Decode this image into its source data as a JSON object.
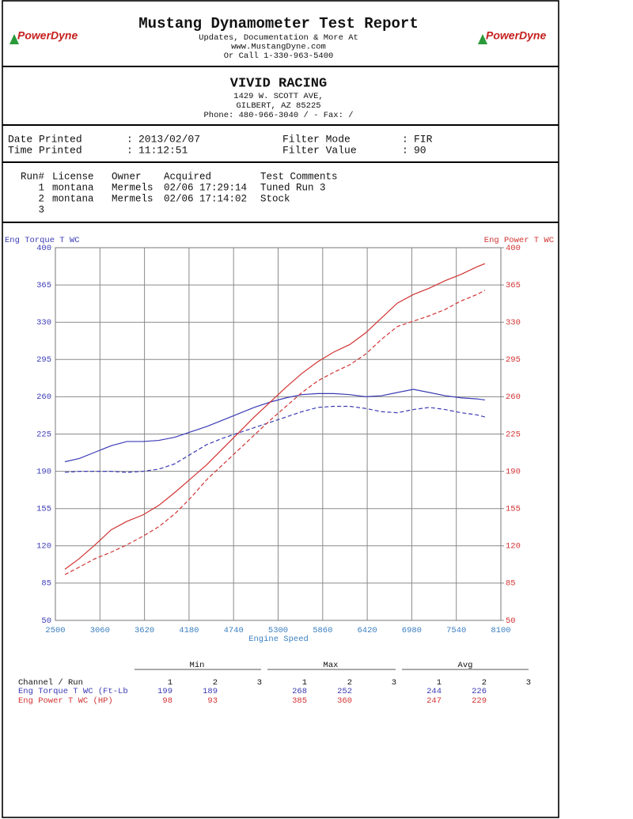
{
  "header": {
    "title": "Mustang Dynamometer Test Report",
    "lines": [
      "Updates, Documentation & More At",
      "www.MustangDyne.com",
      "Or Call 1-330-963-5400"
    ],
    "logo": "PowerDyne"
  },
  "company": {
    "name": "VIVID RACING",
    "lines": [
      "1429 W. SCOTT AVE,",
      "GILBERT, AZ  85225",
      "Phone: 480-966-3040 /  - Fax:  /"
    ]
  },
  "info": {
    "left": [
      {
        "label": "Date Printed",
        "value": "2013/02/07"
      },
      {
        "label": "Time Printed",
        "value": "11:12:51"
      }
    ],
    "right": [
      {
        "label": "Filter Mode",
        "value": "FIR"
      },
      {
        "label": "Filter Value",
        "value": "90"
      }
    ]
  },
  "runs": {
    "columns": [
      "Run#",
      "License",
      "Owner",
      "Acquired",
      "Test Comments"
    ],
    "rows": [
      [
        "1",
        "montana",
        "Mermels",
        "02/06 17:29:14",
        "Tuned Run 3"
      ],
      [
        "2",
        "montana",
        "Mermels",
        "02/06 17:14:02",
        "Stock"
      ],
      [
        "3"
      ]
    ]
  },
  "chart_data": {
    "type": "line",
    "y_label": "Eng Torque T WC",
    "y2_label": "Eng Power T WC",
    "x_label": "Engine Speed",
    "x": [
      2620,
      2800,
      3000,
      3200,
      3400,
      3600,
      3800,
      4000,
      4200,
      4400,
      4600,
      4800,
      5000,
      5200,
      5400,
      5600,
      5800,
      6000,
      6200,
      6400,
      6600,
      6800,
      7000,
      7200,
      7400,
      7600,
      7800,
      7900
    ],
    "series": [
      {
        "color": "#3b3bb5",
        "style": "solid",
        "axis": "y",
        "values": [
          199,
          202,
          208,
          214,
          218,
          218,
          219,
          222,
          227,
          232,
          238,
          244,
          250,
          255,
          259,
          262,
          263,
          263,
          262,
          260,
          261,
          264,
          267,
          264,
          261,
          259,
          258,
          257
        ]
      },
      {
        "color": "#3b3bb5",
        "style": "dashed",
        "axis": "y",
        "values": [
          189,
          190,
          190,
          190,
          189,
          190,
          192,
          197,
          206,
          215,
          221,
          226,
          231,
          236,
          241,
          246,
          250,
          251,
          251,
          249,
          246,
          245,
          248,
          250,
          248,
          245,
          243,
          241
        ]
      },
      {
        "color": "#d23232",
        "style": "solid",
        "axis": "y2",
        "values": [
          98,
          108,
          121,
          135,
          143,
          149,
          158,
          170,
          183,
          196,
          211,
          226,
          241,
          255,
          269,
          282,
          293,
          302,
          309,
          320,
          334,
          348,
          356,
          362,
          369,
          375,
          382,
          385
        ]
      },
      {
        "color": "#d23232",
        "style": "dashed",
        "axis": "y2",
        "values": [
          93,
          100,
          108,
          114,
          121,
          129,
          138,
          150,
          165,
          182,
          196,
          210,
          224,
          238,
          251,
          264,
          275,
          283,
          290,
          300,
          314,
          326,
          331,
          336,
          342,
          350,
          356,
          360
        ]
      }
    ],
    "xlim": [
      2500,
      8100
    ],
    "xticks": [
      2500,
      3060,
      3620,
      4180,
      4740,
      5300,
      5860,
      6420,
      6980,
      7540,
      8100
    ],
    "ylim": [
      50,
      400
    ],
    "yticks": [
      50,
      85,
      120,
      155,
      190,
      225,
      260,
      295,
      330,
      365,
      400
    ],
    "y2lim": [
      50,
      400
    ],
    "y2ticks": [
      50,
      85,
      120,
      155,
      190,
      225,
      260,
      295,
      330,
      365,
      400
    ],
    "y_color": "#3b3bb5",
    "y2_color": "#d23232",
    "x_color": "#3a7fc0",
    "grid": true
  },
  "summary": {
    "groups": [
      "Min",
      "Max",
      "Avg"
    ],
    "channel_label": "Channel / Run",
    "runs": [
      1,
      2,
      3
    ],
    "rows": [
      {
        "name": "Eng Torque T WC (Ft-Lb",
        "color": "#3b3bb5",
        "min": [
          199,
          189
        ],
        "max": [
          268,
          252
        ],
        "avg": [
          244,
          226
        ]
      },
      {
        "name": "Eng Power T WC (HP)",
        "color": "#d23232",
        "min": [
          98,
          93
        ],
        "max": [
          385,
          360
        ],
        "avg": [
          247,
          229
        ]
      }
    ]
  }
}
